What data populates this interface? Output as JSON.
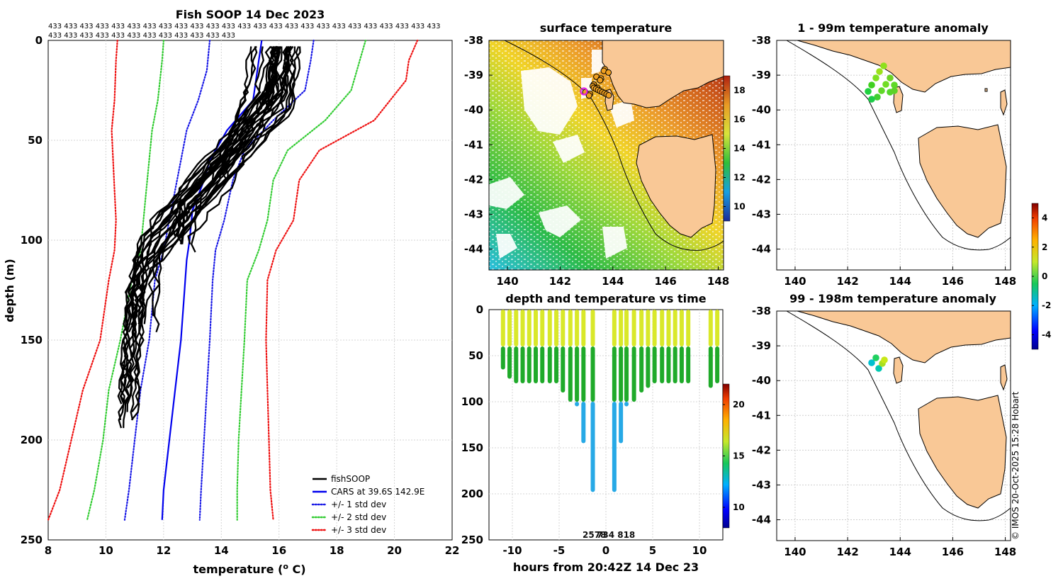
{
  "page_title": "Fish SOOP 14 Dec 2023",
  "counts_line1": "433 433 433 433 433 433 433 433 433 433 433 433 433 433 433 433 433 433 433 433 433 433 433 433 433",
  "counts_line2": "433 433 433 433 433 433 433 433 433 433 433 433",
  "credit": "© IMOS 20-Oct-2025 15:28 Hobart",
  "colors": {
    "profile": "#000000",
    "cars": "#0000ee",
    "std1": "#1a1ae6",
    "std2": "#33cc33",
    "std3": "#ee1111",
    "land": "#f9c896",
    "swath_warm": "#d9e82a",
    "swath_cool": "#1faa2a",
    "swath_cold": "#27a9e6"
  },
  "chart_data": [
    {
      "id": "profile",
      "type": "line",
      "title": "Fish SOOP 14 Dec 2023",
      "xlabel": "temperature (",
      "xlabel_sup": "o",
      "xlabel_tail": " C)",
      "ylabel": "depth (m)",
      "xlim": [
        8,
        22
      ],
      "ylim": [
        0,
        250
      ],
      "y_reversed": true,
      "grid": true,
      "xticks": [
        8,
        10,
        12,
        14,
        16,
        18,
        20,
        22
      ],
      "yticks": [
        0,
        50,
        100,
        150,
        200,
        250
      ],
      "legend_position": "bottom-right",
      "legend": [
        {
          "label": "fishSOOP",
          "style": "solid",
          "color_key": "profile"
        },
        {
          "label": "CARS at 39.6S 142.9E",
          "style": "solid",
          "color_key": "cars"
        },
        {
          "label": "+/- 1 std dev",
          "style": "dotted",
          "color_key": "std1"
        },
        {
          "label": "+/- 2 std dev",
          "style": "dotted",
          "color_key": "std2"
        },
        {
          "label": "+/- 3 std dev",
          "style": "dotted",
          "color_key": "std3"
        }
      ],
      "series": [
        {
          "name": "CARS mean",
          "style": "solid",
          "color_key": "cars",
          "points": [
            [
              15.4,
              0
            ],
            [
              15.3,
              10
            ],
            [
              15.1,
              30
            ],
            [
              14.2,
              45
            ],
            [
              13.6,
              60
            ],
            [
              13.4,
              70
            ],
            [
              13.0,
              85
            ],
            [
              12.9,
              100
            ],
            [
              12.8,
              110
            ],
            [
              12.7,
              130
            ],
            [
              12.6,
              150
            ],
            [
              12.4,
              175
            ],
            [
              12.2,
              200
            ],
            [
              12.0,
              225
            ],
            [
              11.95,
              240
            ]
          ]
        },
        {
          "name": "-1 std",
          "style": "dotted",
          "color_key": "std1",
          "points": [
            [
              13.6,
              0
            ],
            [
              13.5,
              15
            ],
            [
              13.2,
              30
            ],
            [
              12.8,
              45
            ],
            [
              12.6,
              60
            ],
            [
              12.4,
              75
            ],
            [
              12.2,
              90
            ],
            [
              12.0,
              105
            ],
            [
              11.7,
              120
            ],
            [
              11.5,
              150
            ],
            [
              11.2,
              175
            ],
            [
              11.0,
              200
            ],
            [
              10.8,
              225
            ],
            [
              10.65,
              240
            ]
          ]
        },
        {
          "name": "+1 std",
          "style": "dotted",
          "color_key": "std1",
          "points": [
            [
              17.2,
              0
            ],
            [
              17.1,
              10
            ],
            [
              16.9,
              25
            ],
            [
              15.8,
              40
            ],
            [
              14.8,
              55
            ],
            [
              14.4,
              70
            ],
            [
              14.1,
              90
            ],
            [
              13.8,
              105
            ],
            [
              13.7,
              120
            ],
            [
              13.6,
              150
            ],
            [
              13.5,
              175
            ],
            [
              13.4,
              200
            ],
            [
              13.3,
              225
            ],
            [
              13.25,
              240
            ]
          ]
        },
        {
          "name": "-2 std",
          "style": "dotted",
          "color_key": "std2",
          "points": [
            [
              12.0,
              0
            ],
            [
              11.95,
              10
            ],
            [
              11.8,
              30
            ],
            [
              11.6,
              45
            ],
            [
              11.5,
              60
            ],
            [
              11.4,
              75
            ],
            [
              11.3,
              90
            ],
            [
              11.2,
              105
            ],
            [
              10.9,
              120
            ],
            [
              10.5,
              150
            ],
            [
              10.1,
              175
            ],
            [
              9.9,
              200
            ],
            [
              9.6,
              225
            ],
            [
              9.35,
              240
            ]
          ]
        },
        {
          "name": "+2 std",
          "style": "dotted",
          "color_key": "std2",
          "points": [
            [
              19.0,
              0
            ],
            [
              18.8,
              10
            ],
            [
              18.5,
              25
            ],
            [
              17.6,
              40
            ],
            [
              16.3,
              55
            ],
            [
              15.8,
              70
            ],
            [
              15.6,
              90
            ],
            [
              15.3,
              105
            ],
            [
              14.9,
              120
            ],
            [
              14.8,
              150
            ],
            [
              14.7,
              175
            ],
            [
              14.6,
              200
            ],
            [
              14.55,
              225
            ],
            [
              14.55,
              240
            ]
          ]
        },
        {
          "name": "-3 std",
          "style": "dotted",
          "color_key": "std3",
          "points": [
            [
              10.4,
              0
            ],
            [
              10.35,
              10
            ],
            [
              10.3,
              30
            ],
            [
              10.2,
              45
            ],
            [
              10.25,
              60
            ],
            [
              10.3,
              75
            ],
            [
              10.35,
              90
            ],
            [
              10.3,
              105
            ],
            [
              10.1,
              120
            ],
            [
              9.8,
              150
            ],
            [
              9.2,
              175
            ],
            [
              8.8,
              200
            ],
            [
              8.4,
              225
            ],
            [
              8.0,
              240
            ]
          ]
        },
        {
          "name": "+3 std",
          "style": "dotted",
          "color_key": "std3",
          "points": [
            [
              20.8,
              0
            ],
            [
              20.5,
              10
            ],
            [
              20.4,
              20
            ],
            [
              19.3,
              40
            ],
            [
              17.4,
              55
            ],
            [
              16.7,
              70
            ],
            [
              16.5,
              90
            ],
            [
              15.9,
              105
            ],
            [
              15.6,
              120
            ],
            [
              15.55,
              150
            ],
            [
              15.6,
              175
            ],
            [
              15.65,
              200
            ],
            [
              15.7,
              225
            ],
            [
              15.8,
              240
            ]
          ]
        }
      ]
    },
    {
      "id": "sst",
      "type": "heatmap",
      "title": "surface temperature",
      "xlim": [
        139.3,
        148.2
      ],
      "ylim": [
        -44.6,
        -38
      ],
      "xticks": [
        140,
        142,
        144,
        146,
        148
      ],
      "yticks": [
        -38,
        -39,
        -40,
        -41,
        -42,
        -43,
        -44
      ],
      "colorbar": {
        "ticks": [
          10,
          12,
          14,
          16,
          18
        ],
        "range": [
          9,
          19
        ]
      }
    },
    {
      "id": "timeseries",
      "type": "scatter",
      "title": "depth and temperature vs time",
      "xlabel": "hours from 20:42Z 14 Dec 23",
      "xlim": [
        -12.5,
        12.5
      ],
      "ylim": [
        0,
        250
      ],
      "y_reversed": true,
      "xticks": [
        -10,
        -5,
        0,
        5,
        10
      ],
      "yticks": [
        0,
        50,
        100,
        150,
        200,
        250
      ],
      "colorbar": {
        "ticks": [
          10,
          15,
          20
        ],
        "range": [
          8,
          22
        ]
      },
      "annotation": "2578",
      "annotation_overlap": "734 818",
      "columns": [
        {
          "hour": -11,
          "max_depth": 65
        },
        {
          "hour": -10.3,
          "max_depth": 75
        },
        {
          "hour": -9.6,
          "max_depth": 80
        },
        {
          "hour": -8.9,
          "max_depth": 80
        },
        {
          "hour": -8.2,
          "max_depth": 80
        },
        {
          "hour": -7.5,
          "max_depth": 80
        },
        {
          "hour": -6.8,
          "max_depth": 80
        },
        {
          "hour": -6.0,
          "max_depth": 80
        },
        {
          "hour": -5.3,
          "max_depth": 80
        },
        {
          "hour": -4.6,
          "max_depth": 90
        },
        {
          "hour": -3.8,
          "max_depth": 100
        },
        {
          "hour": -3.1,
          "max_depth": 105
        },
        {
          "hour": -2.4,
          "max_depth": 145
        },
        {
          "hour": -1.4,
          "max_depth": 198
        },
        {
          "hour": 0.9,
          "max_depth": 198
        },
        {
          "hour": 1.6,
          "max_depth": 145
        },
        {
          "hour": 2.2,
          "max_depth": 105
        },
        {
          "hour": 3.0,
          "max_depth": 100
        },
        {
          "hour": 3.8,
          "max_depth": 90
        },
        {
          "hour": 4.5,
          "max_depth": 85
        },
        {
          "hour": 5.2,
          "max_depth": 80
        },
        {
          "hour": 6.0,
          "max_depth": 80
        },
        {
          "hour": 6.7,
          "max_depth": 80
        },
        {
          "hour": 7.4,
          "max_depth": 80
        },
        {
          "hour": 8.1,
          "max_depth": 80
        },
        {
          "hour": 8.8,
          "max_depth": 80
        },
        {
          "hour": 11.2,
          "max_depth": 85
        },
        {
          "hour": 11.9,
          "max_depth": 80
        }
      ]
    },
    {
      "id": "anom1",
      "type": "scatter",
      "title": "1 - 99m temperature anomaly",
      "xlim": [
        139.3,
        148.2
      ],
      "ylim": [
        -44.6,
        -38
      ],
      "xticks": [
        140,
        142,
        144,
        146,
        148
      ],
      "yticks": [
        -38,
        -39,
        -40,
        -41,
        -42,
        -43,
        -44
      ]
    },
    {
      "id": "anom2",
      "type": "scatter",
      "title": "99 - 198m temperature anomaly",
      "xlim": [
        139.3,
        148.2
      ],
      "ylim": [
        -44.6,
        -38
      ],
      "xticks": [
        140,
        142,
        144,
        146,
        148
      ],
      "yticks": [
        -38,
        -39,
        -40,
        -41,
        -42,
        -43,
        -44
      ]
    },
    {
      "id": "anom_colorbar",
      "type": "colorbar",
      "ticks": [
        4,
        2,
        0,
        -2,
        -4
      ],
      "range": [
        -5,
        5
      ]
    }
  ]
}
